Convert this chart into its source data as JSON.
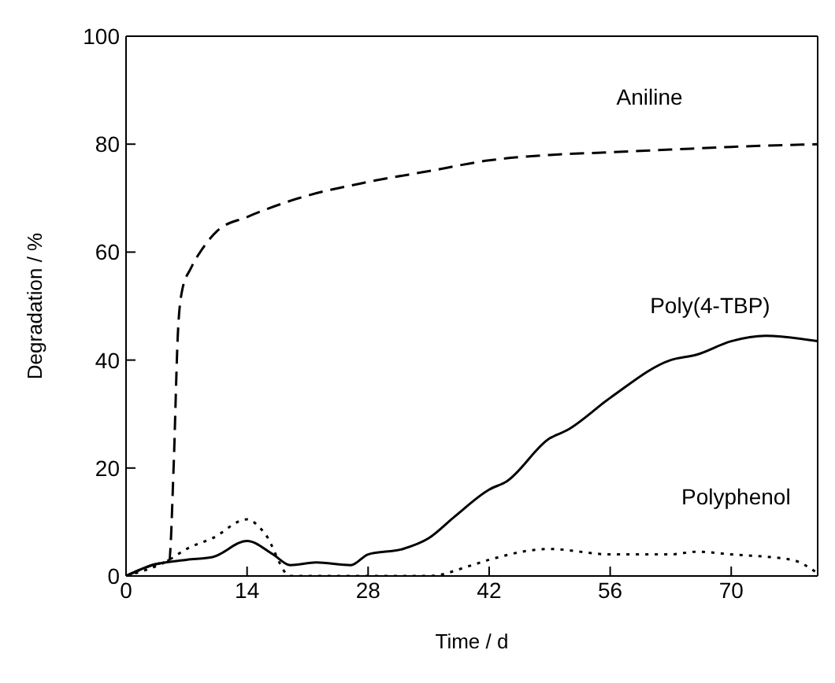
{
  "chart_data": {
    "type": "line",
    "xlabel": "Time / d",
    "ylabel": "Degradation / %",
    "xlim": [
      0,
      80
    ],
    "xticks": [
      0,
      14,
      28,
      42,
      56,
      70
    ],
    "ylim": [
      0,
      100
    ],
    "yticks": [
      0,
      20,
      40,
      60,
      80,
      100
    ],
    "marker": "none",
    "series": [
      {
        "name": "Aniline",
        "color": "#000000",
        "line_style": "dashed",
        "x": [
          0,
          3,
          5,
          5.5,
          6,
          6.5,
          7.5,
          9,
          10.6,
          14,
          20,
          28,
          35,
          42,
          49,
          56,
          63,
          70,
          80
        ],
        "values": [
          0,
          2,
          3,
          20,
          45,
          53,
          57,
          61,
          64,
          66.5,
          70,
          73,
          75,
          77,
          78,
          78.5,
          79,
          79.5,
          80
        ]
      },
      {
        "name": "Poly(4-TBP)",
        "color": "#000000",
        "line_style": "solid",
        "x": [
          0,
          3,
          7,
          10,
          14,
          17,
          19,
          22,
          26,
          28,
          32,
          35,
          38,
          42,
          44,
          49,
          51,
          56,
          63,
          66,
          70,
          74,
          80
        ],
        "values": [
          0,
          2,
          3,
          3.5,
          6.5,
          4,
          2,
          2.5,
          2,
          4,
          5,
          7,
          11,
          16,
          17.5,
          25.5,
          27,
          33,
          40,
          41,
          43.5,
          44.5,
          43.5
        ]
      },
      {
        "name": "Polyphenol",
        "color": "#000000",
        "line_style": "dotted",
        "x": [
          0,
          5,
          7,
          10,
          14,
          16,
          19,
          35,
          40,
          42,
          49,
          56,
          63,
          66,
          70,
          77,
          80
        ],
        "values": [
          0,
          3,
          5,
          7,
          10.5,
          8,
          0,
          0,
          2,
          3,
          5,
          4,
          4,
          4.5,
          4,
          3,
          0.5
        ]
      }
    ]
  }
}
